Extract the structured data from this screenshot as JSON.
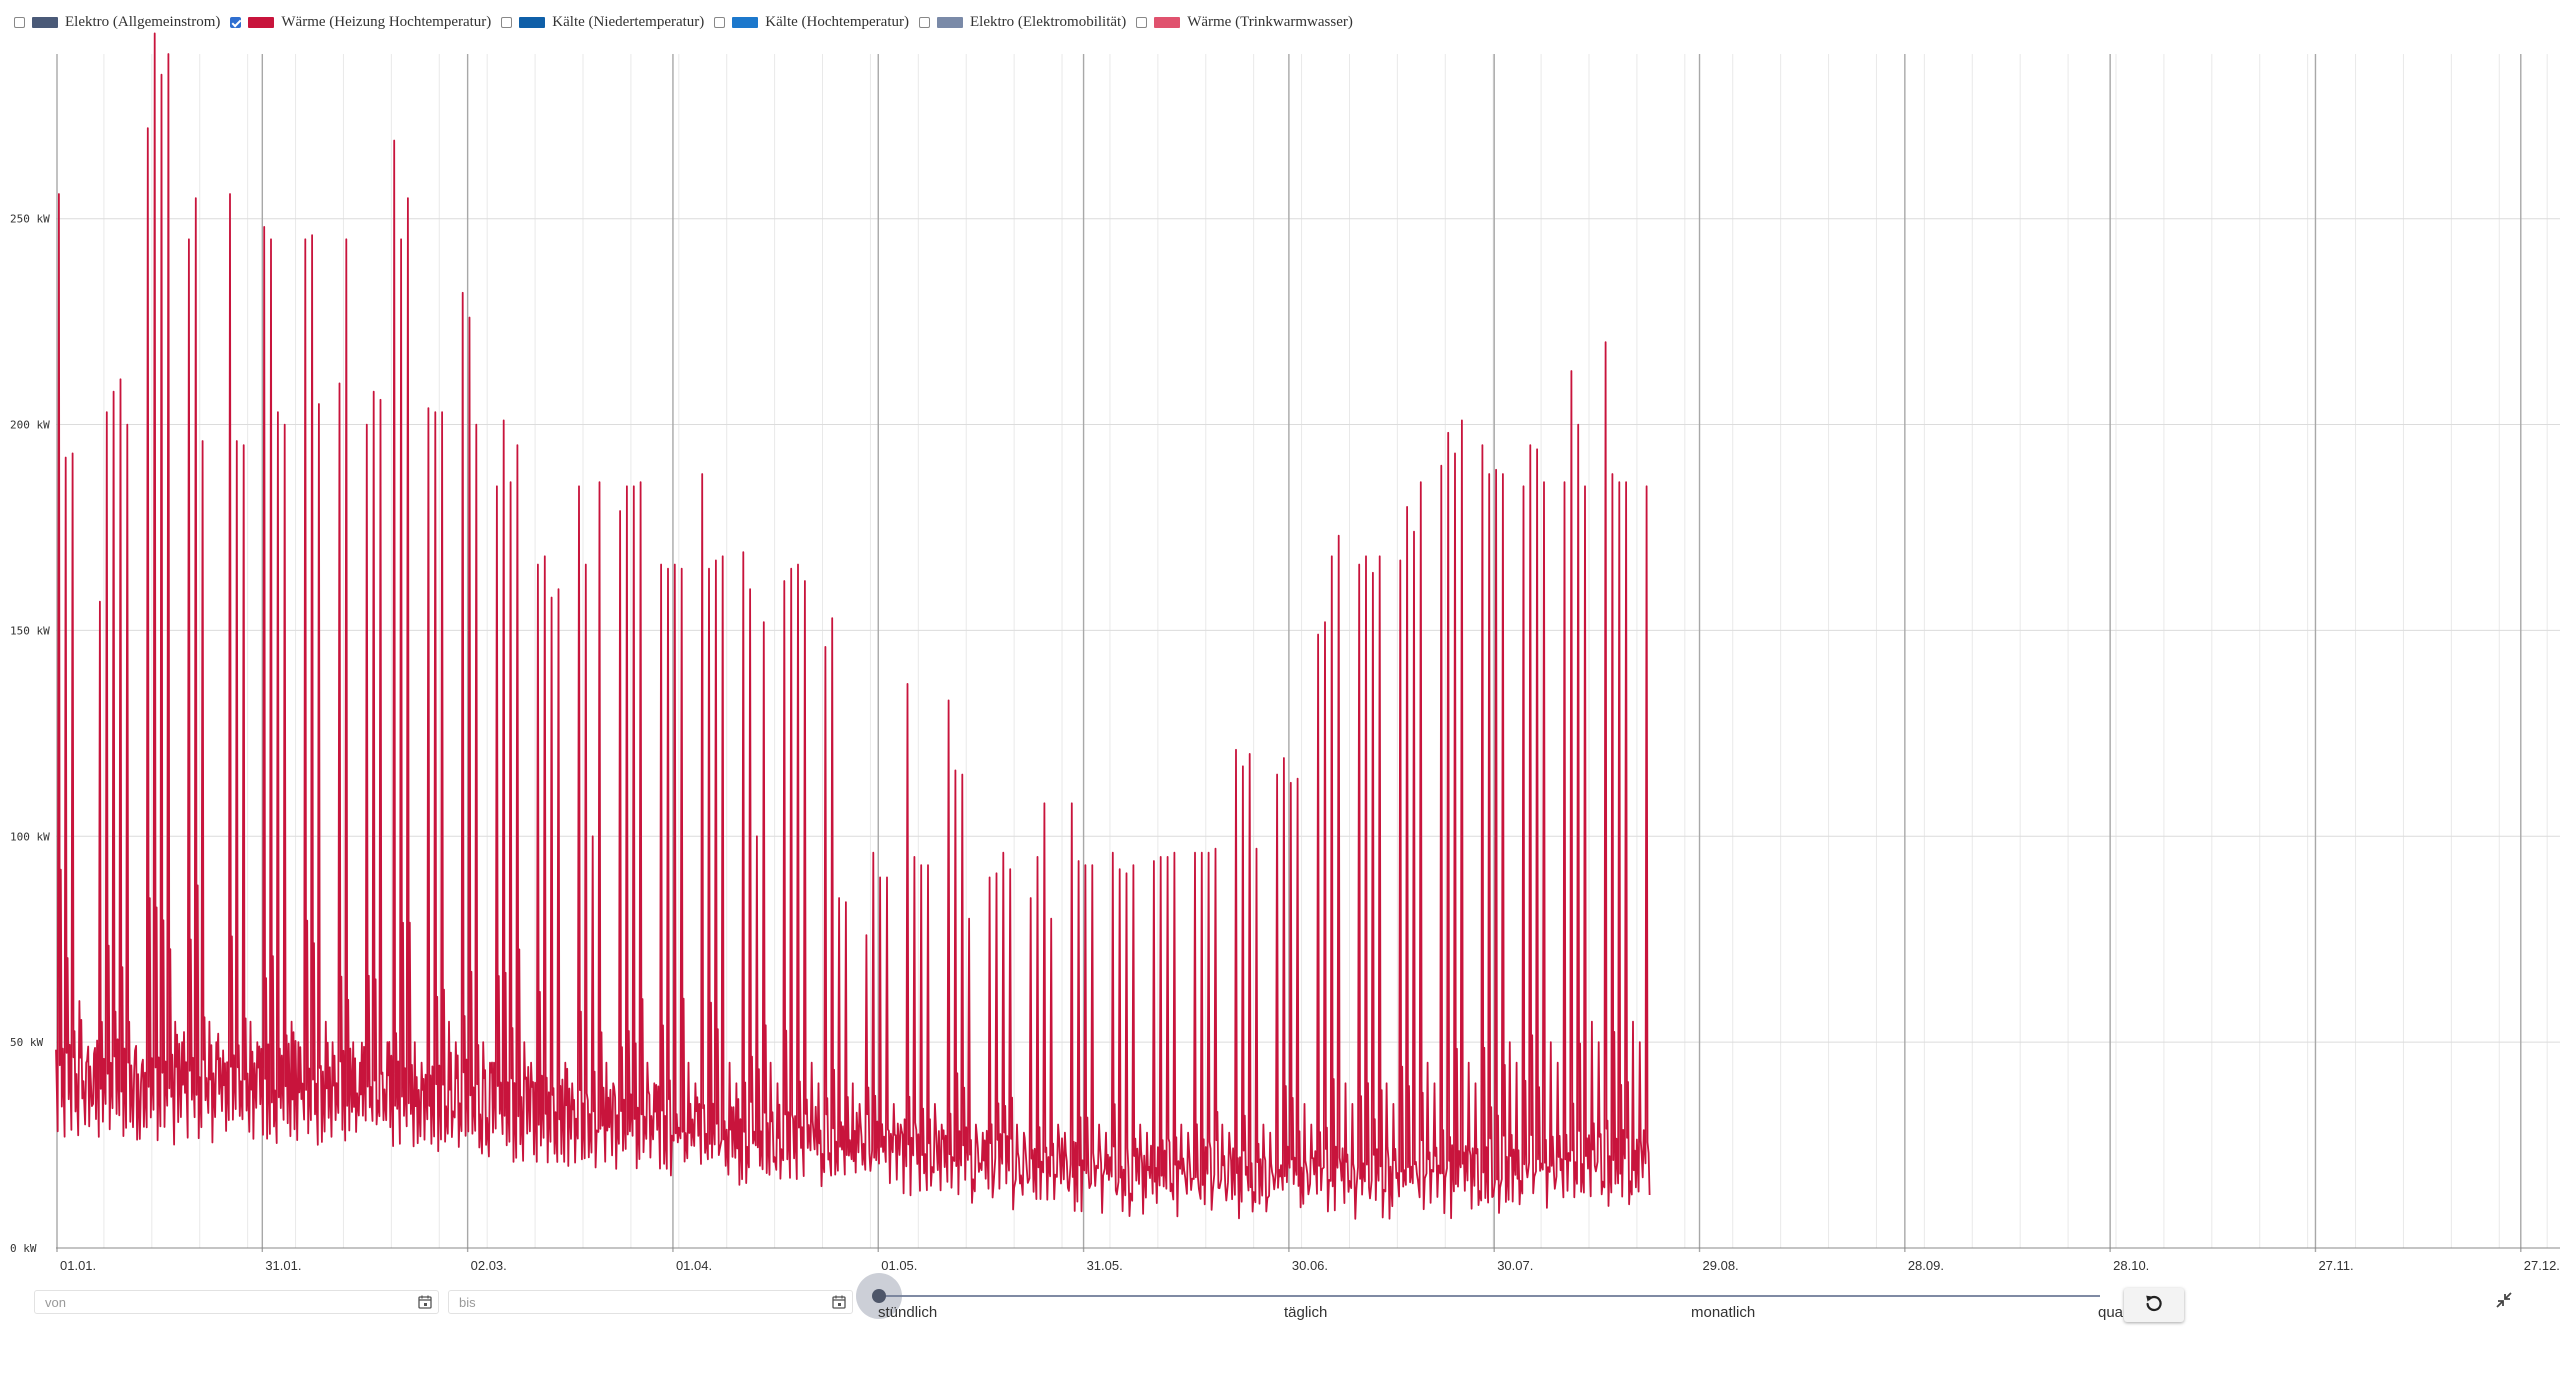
{
  "legend": [
    {
      "label": "Elektro (Allgemeinstrom)",
      "checked": false,
      "color": "#4a5a78"
    },
    {
      "label": "Wärme (Heizung Hochtemperatur)",
      "checked": true,
      "color": "#c8143c"
    },
    {
      "label": "Kälte (Niedertemperatur)",
      "checked": false,
      "color": "#0f5fa8"
    },
    {
      "label": "Kälte (Hochtemperatur)",
      "checked": false,
      "color": "#1c78cc"
    },
    {
      "label": "Elektro (Elektromobilität)",
      "checked": false,
      "color": "#7a8aa8"
    },
    {
      "label": "Wärme (Trinkwarmwasser)",
      "checked": false,
      "color": "#e0526e"
    }
  ],
  "chart_data": {
    "type": "line",
    "title": "",
    "xlabel": "",
    "ylabel": "",
    "unit": "kW",
    "ylim": [
      0,
      290
    ],
    "yticks": [
      "0 kW",
      "50 kW",
      "100 kW",
      "150 kW",
      "200 kW",
      "250 kW"
    ],
    "x_ticks": [
      "01.01.",
      "31.01.",
      "02.03.",
      "01.04.",
      "01.05.",
      "31.05.",
      "30.06.",
      "30.07.",
      "29.08.",
      "28.09.",
      "28.10.",
      "27.11.",
      "27.12."
    ],
    "grid": true,
    "series": [
      {
        "name": "Wärme (Heizung Hochtemperatur)",
        "color": "#c8143c",
        "x_range": [
          "01.01.",
          "31.12."
        ],
        "daily_peaks": [
          256,
          192,
          193,
          60,
          45,
          35,
          157,
          203,
          208,
          211,
          200,
          43,
          40,
          272,
          295,
          285,
          290,
          55,
          50,
          245,
          255,
          196,
          55,
          50,
          48,
          256,
          196,
          195,
          55,
          50,
          248,
          245,
          203,
          200,
          55,
          50,
          245,
          246,
          205,
          55,
          50,
          210,
          245,
          50,
          45,
          200,
          208,
          206,
          50,
          269,
          245,
          255,
          50,
          45,
          204,
          203,
          203,
          55,
          50,
          232,
          226,
          200,
          50,
          45,
          185,
          201,
          186,
          195,
          50,
          45,
          166,
          168,
          158,
          160,
          45,
          40,
          185,
          166,
          100,
          186,
          45,
          40,
          179,
          185,
          185,
          186,
          45,
          40,
          166,
          165,
          166,
          165,
          45,
          40,
          188,
          165,
          167,
          168,
          45,
          40,
          169,
          160,
          100,
          152,
          45,
          40,
          162,
          165,
          166,
          162,
          45,
          40,
          146,
          153,
          85,
          84,
          40,
          35,
          76,
          96,
          90,
          90,
          35,
          30,
          137,
          95,
          93,
          93,
          35,
          30,
          133,
          116,
          115,
          80,
          30,
          28,
          90,
          91,
          96,
          92,
          30,
          28,
          85,
          95,
          108,
          80,
          30,
          28,
          108,
          94,
          93,
          93,
          30,
          28,
          96,
          92,
          91,
          93,
          30,
          28,
          94,
          95,
          95,
          96,
          30,
          28,
          96,
          96,
          96,
          97,
          30,
          28,
          121,
          117,
          120,
          97,
          30,
          28,
          115,
          119,
          113,
          114,
          35,
          30,
          149,
          152,
          168,
          173,
          40,
          35,
          166,
          168,
          164,
          168,
          40,
          35,
          167,
          180,
          174,
          186,
          45,
          40,
          190,
          198,
          193,
          201,
          45,
          40,
          195,
          188,
          189,
          188,
          50,
          45,
          185,
          195,
          194,
          186,
          50,
          45,
          186,
          213,
          200,
          185,
          55,
          50,
          220,
          188,
          186,
          186,
          55,
          50,
          185
        ]
      }
    ]
  },
  "controls": {
    "from_placeholder": "von",
    "to_placeholder": "bis",
    "resolution_options": [
      "stündlich",
      "täglich",
      "monatlich",
      "quartal"
    ],
    "resolution_selected": "stündlich"
  },
  "icons": {
    "calendar": "calendar-icon",
    "reset": "reset-icon",
    "collapse": "collapse-icon"
  }
}
